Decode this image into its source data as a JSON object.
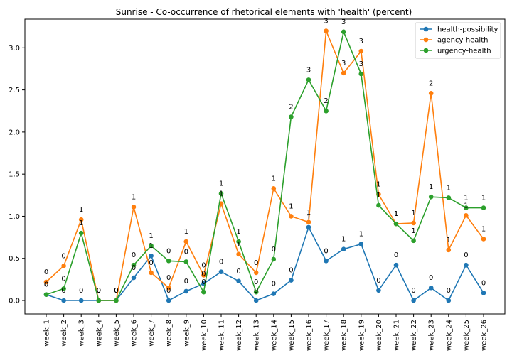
{
  "chart_data": {
    "type": "line",
    "title": "Sunrise - Co-occurrence of rhetorical elements with 'health' (percent)",
    "xlabel": "",
    "ylabel": "",
    "ylim": [
      -0.16,
      3.34
    ],
    "yticks": [
      "0.0",
      "0.5",
      "1.0",
      "1.5",
      "2.0",
      "2.5",
      "3.0"
    ],
    "grid": false,
    "legend_position": "top-right",
    "categories": [
      "week_1",
      "week_2",
      "week_3",
      "week_4",
      "week_5",
      "week_6",
      "week_7",
      "week_8",
      "week_9",
      "week_10",
      "week_11",
      "week_12",
      "week_13",
      "week_14",
      "week_15",
      "week_16",
      "week_17",
      "week_18",
      "week_19",
      "week_20",
      "week_21",
      "week_22",
      "week_23",
      "week_24",
      "week_25",
      "week_26"
    ],
    "series": [
      {
        "name": "health-possibility",
        "color": "#1f77b4",
        "values": [
          0.07,
          0.0,
          0.0,
          0.0,
          0.0,
          0.27,
          0.53,
          0.0,
          0.11,
          0.2,
          0.34,
          0.23,
          0.0,
          0.08,
          0.24,
          0.87,
          0.47,
          0.61,
          0.67,
          0.12,
          0.42,
          0.0,
          0.15,
          0.0,
          0.42,
          0.09
        ],
        "labels": [
          "0",
          "0",
          "0",
          "0",
          "0",
          "0",
          "1",
          "0",
          "0",
          "0",
          "0",
          "0",
          "0",
          "0",
          "0",
          "1",
          "0",
          "1",
          "1",
          "0",
          "0",
          "0",
          "0",
          "0",
          "0",
          "0"
        ]
      },
      {
        "name": "agency-health",
        "color": "#ff7f0e",
        "values": [
          0.22,
          0.41,
          0.96,
          0.0,
          0.0,
          1.11,
          0.33,
          0.15,
          0.7,
          0.3,
          1.15,
          0.55,
          0.33,
          1.33,
          1.0,
          0.93,
          3.2,
          2.7,
          2.96,
          1.26,
          0.91,
          0.92,
          2.46,
          0.6,
          1.01,
          0.73
        ],
        "labels": [
          "0",
          "0",
          "1",
          "0",
          "0",
          "1",
          "0",
          "0",
          "1",
          "0",
          "1",
          "1",
          "0",
          "1",
          "1",
          "1",
          "3",
          "3",
          "3",
          "1",
          "1",
          "1",
          "2",
          "1",
          "1",
          "1"
        ]
      },
      {
        "name": "urgency-health",
        "color": "#2ca02c",
        "values": [
          0.07,
          0.14,
          0.8,
          0.0,
          0.0,
          0.42,
          0.65,
          0.47,
          0.46,
          0.1,
          1.27,
          0.7,
          0.1,
          0.49,
          2.18,
          2.62,
          2.25,
          3.19,
          2.69,
          1.13,
          0.91,
          0.71,
          1.23,
          1.22,
          1.1,
          1.1
        ],
        "labels": [
          "0",
          "0",
          "1",
          "0",
          "0",
          "0",
          "1",
          "0",
          "0",
          "0",
          "1",
          "1",
          "0",
          "0",
          "2",
          "3",
          "2",
          "3",
          "3",
          "1",
          "1",
          "1",
          "1",
          "1",
          "1",
          "1"
        ]
      }
    ]
  }
}
